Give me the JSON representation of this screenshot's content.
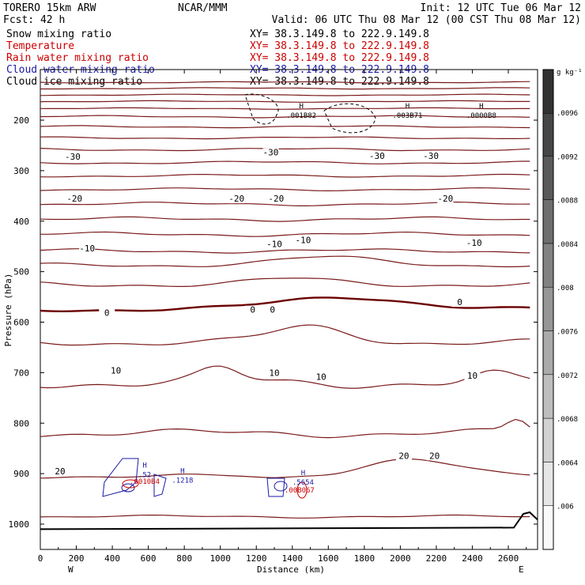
{
  "header": {
    "model": "TORERO  15km ARW",
    "center": "NCAR/MMM",
    "init": "Init: 12 UTC Tue 06 Mar 12",
    "fcst": "Fcst:   42 h",
    "valid": "Valid: 06 UTC Thu 08 Mar 12 (00 CST Thu 08 Mar 12)"
  },
  "legend": [
    {
      "name": "Snow mixing ratio",
      "xy": "XY=  38.3.149.8 to 222.9.149.8",
      "color": "#000000"
    },
    {
      "name": "Temperature",
      "xy": "XY=  38.3.149.8 to 222.9.149.8",
      "color": "#cc0000"
    },
    {
      "name": "Rain water mixing ratio",
      "xy": "XY=  38.3.149.8 to 222.9.149.8",
      "color": "#cc0000"
    },
    {
      "name": "Cloud water mixing ratio",
      "xy": "XY=  38.3.149.8 to 222.9.149.8",
      "color": "#1a1aa8"
    },
    {
      "name": "Cloud ice mixing ratio",
      "xy": "XY=  38.3.149.8 to 222.9.149.8",
      "color": "#000000"
    }
  ],
  "colors": {
    "temperature": "#7a1a1a",
    "freezing": "#6b0000",
    "cloud_water": "#1a1aa8",
    "rain": "#cc0000",
    "snow": "#000000"
  },
  "chart_data": {
    "type": "line",
    "xlabel": "Distance (km)",
    "ylabel": "Pressure (hPa)",
    "xlim": [
      0,
      2740
    ],
    "ylim": [
      1050,
      100
    ],
    "y_scale": "linear, inverted",
    "x_ticks": [
      0,
      200,
      400,
      600,
      800,
      1000,
      1200,
      1400,
      1600,
      1800,
      2000,
      2200,
      2400,
      2600
    ],
    "x_tick_labels": [
      "0",
      "200",
      "400",
      "600",
      "800",
      "1000",
      "1200",
      "1400",
      "1600",
      "1800",
      "2000",
      "2200",
      "2400",
      "2600"
    ],
    "x_end_labels": {
      "left": "W",
      "right": "E"
    },
    "y_ticks": [
      200,
      300,
      400,
      500,
      600,
      700,
      800,
      900,
      1000
    ],
    "y_tick_labels": [
      "200",
      "300",
      "400",
      "500",
      "600",
      "700",
      "800",
      "900",
      "1000"
    ],
    "colorbar": {
      "unit": "g kg⁻¹",
      "ticks": [
        ".006",
        ".0064",
        ".0068",
        ".0072",
        ".0076",
        ".008",
        ".0084",
        ".0088",
        ".0092",
        ".0096"
      ]
    },
    "temperature_contours": [
      {
        "value": -30,
        "labels": [
          {
            "x": 180,
            "p": 277
          },
          {
            "x": 1280,
            "p": 268
          },
          {
            "x": 1870,
            "p": 275
          },
          {
            "x": 2170,
            "p": 275
          }
        ]
      },
      {
        "value": -20,
        "labels": [
          {
            "x": 190,
            "p": 360
          },
          {
            "x": 1090,
            "p": 360
          },
          {
            "x": 1310,
            "p": 360
          },
          {
            "x": 2250,
            "p": 360
          }
        ]
      },
      {
        "value": -10,
        "labels": [
          {
            "x": 260,
            "p": 458
          },
          {
            "x": 1300,
            "p": 450
          },
          {
            "x": 1460,
            "p": 442
          },
          {
            "x": 2410,
            "p": 447
          }
        ]
      },
      {
        "value": 0,
        "labels": [
          {
            "x": 370,
            "p": 586
          },
          {
            "x": 1180,
            "p": 580
          },
          {
            "x": 1290,
            "p": 580
          },
          {
            "x": 2330,
            "p": 565
          }
        ]
      },
      {
        "value": 10,
        "labels": [
          {
            "x": 420,
            "p": 700
          },
          {
            "x": 1300,
            "p": 705
          },
          {
            "x": 1560,
            "p": 713
          },
          {
            "x": 2400,
            "p": 710
          }
        ]
      },
      {
        "value": 20,
        "labels": [
          {
            "x": 110,
            "p": 900
          },
          {
            "x": 2020,
            "p": 869
          },
          {
            "x": 2190,
            "p": 869
          }
        ]
      }
    ],
    "extrema_labels": [
      {
        "letter": "H",
        "value": ".001B82",
        "x": 1450,
        "p": 195,
        "field": "cloud ice"
      },
      {
        "letter": "H",
        "value": ".003B71",
        "x": 2040,
        "p": 195,
        "field": "cloud ice"
      },
      {
        "letter": "H",
        "value": ".0000B8",
        "x": 2450,
        "p": 195,
        "field": "cloud ice"
      },
      {
        "letter": "H",
        "value": ".52",
        "x": 580,
        "p": 907,
        "field": "cloud water"
      },
      {
        "letter": "H",
        "value": ".1218",
        "x": 790,
        "p": 918,
        "field": "cloud water"
      },
      {
        "letter": "H",
        "value": ".5654",
        "x": 1460,
        "p": 922,
        "field": "cloud water"
      },
      {
        "letter": "",
        "value": ".0010B4",
        "x": 580,
        "p": 920,
        "field": "rain"
      },
      {
        "letter": "",
        "value": ".00B067",
        "x": 1440,
        "p": 937,
        "field": "rain"
      }
    ],
    "terrain_p": 1010
  }
}
